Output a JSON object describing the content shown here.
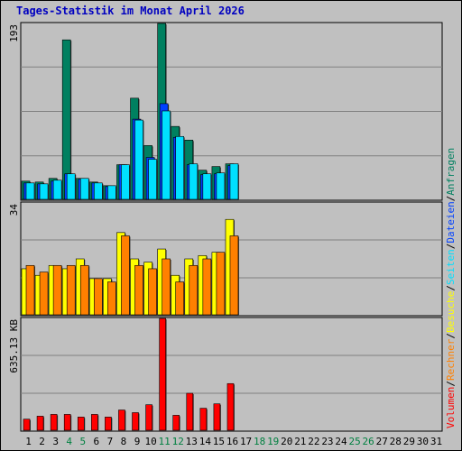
{
  "title": "Tages-Statistik im Monat April 2026",
  "colors": {
    "anfragen": "#008060",
    "dateien": "#0040ff",
    "seiten": "#00e0ff",
    "besuche": "#ffff00",
    "rechner": "#ff8000",
    "volumen": "#ff0000",
    "weekend": "#008040",
    "weekday": "#000000"
  },
  "legend": [
    {
      "label": "Volumen",
      "color": "#ff0000"
    },
    {
      "label": "/",
      "color": "#000000"
    },
    {
      "label": "Rechner",
      "color": "#ff8000"
    },
    {
      "label": "/",
      "color": "#000000"
    },
    {
      "label": "Besuche",
      "color": "#ffff00"
    },
    {
      "label": "/",
      "color": "#000000"
    },
    {
      "label": "Seiten",
      "color": "#00e0ff"
    },
    {
      "label": "/",
      "color": "#000000"
    },
    {
      "label": "Dateien",
      "color": "#0040ff"
    },
    {
      "label": "/",
      "color": "#000000"
    },
    {
      "label": "Anfragen",
      "color": "#008060"
    }
  ],
  "chart_data": {
    "type": "bar",
    "title": "Tages-Statistik im Monat April 2026",
    "days": [
      "1",
      "2",
      "3",
      "4",
      "5",
      "6",
      "7",
      "8",
      "9",
      "10",
      "11",
      "12",
      "13",
      "14",
      "15",
      "16",
      "17",
      "18",
      "19",
      "20",
      "21",
      "22",
      "23",
      "24",
      "25",
      "26",
      "27",
      "28",
      "29",
      "30",
      "31"
    ],
    "weekend_days": [
      "4",
      "5",
      "11",
      "12",
      "18",
      "19",
      "25",
      "26"
    ],
    "panels": [
      {
        "max_label": "193",
        "max": 193,
        "series": [
          {
            "key": "anfragen",
            "values": [
              20,
              19,
              23,
              175,
              23,
              19,
              15,
              38,
              111,
              59,
              193,
              80,
              65,
              32,
              36,
              39
            ]
          },
          {
            "key": "dateien",
            "values": [
              18,
              17,
              20,
              28,
              22,
              18,
              14,
              38,
              88,
              46,
              105,
              68,
              38,
              27,
              28,
              37
            ]
          },
          {
            "key": "seiten",
            "values": [
              18,
              17,
              21,
              28,
              23,
              18,
              15,
              38,
              87,
              44,
              97,
              69,
              39,
              28,
              29,
              39
            ]
          }
        ]
      },
      {
        "max_label": "34",
        "max": 34,
        "series": [
          {
            "key": "besuche",
            "values": [
              14,
              12,
              15,
              14,
              17,
              11,
              11,
              25,
              17,
              16,
              20,
              12,
              17,
              18,
              19,
              29
            ]
          },
          {
            "key": "rechner",
            "values": [
              15,
              13,
              15,
              15,
              15,
              11,
              10,
              24,
              15,
              14,
              17,
              10,
              15,
              17,
              19,
              24
            ]
          }
        ]
      },
      {
        "max_label": "635.13 KB",
        "max": 635.13,
        "series": [
          {
            "key": "volumen",
            "values": [
              63,
              80,
              90,
              90,
              75,
              90,
              75,
              115,
              100,
              145,
              635,
              85,
              210,
              125,
              150,
              265
            ]
          }
        ]
      }
    ]
  }
}
